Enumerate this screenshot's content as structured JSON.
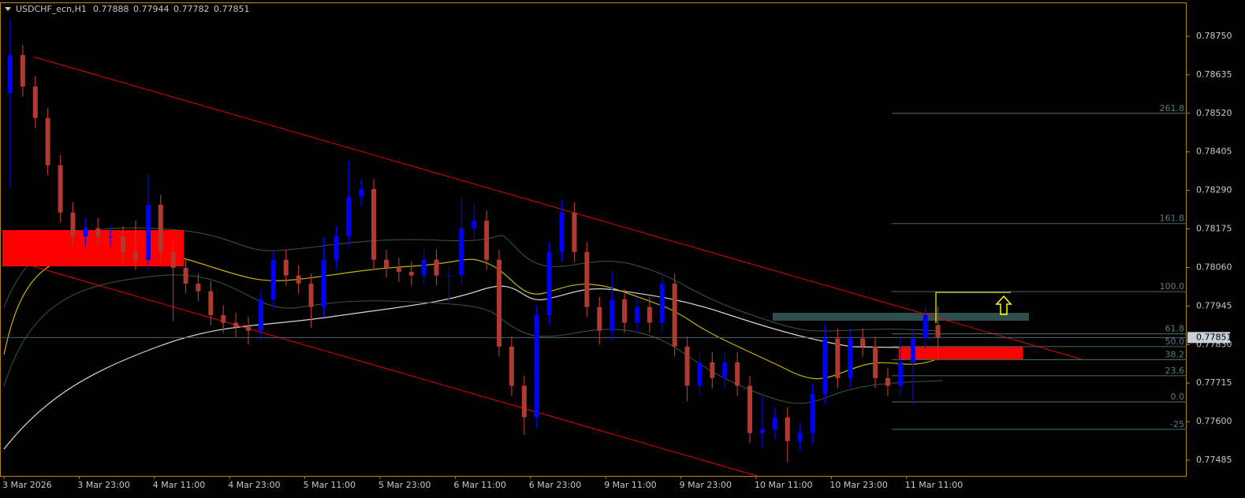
{
  "chart_data": {
    "type": "candlestick",
    "title": "USDCHF_ecn,H1",
    "categories": [
      "3 Mar 2026",
      null,
      null,
      null,
      null,
      null,
      "3 Mar 23:00",
      null,
      null,
      null,
      null,
      null,
      "4 Mar 11:00",
      null,
      null,
      null,
      null,
      null,
      "4 Mar 23:00",
      null,
      null,
      null,
      null,
      null,
      "5 Mar 11:00",
      null,
      null,
      null,
      null,
      null,
      "5 Mar 23:00",
      null,
      null,
      null,
      null,
      null,
      "6 Mar 11:00",
      null,
      null,
      null,
      null,
      null,
      "6 Mar 23:00",
      null,
      null,
      null,
      null,
      null,
      "9 Mar 11:00",
      null,
      null,
      null,
      null,
      null,
      "9 Mar 23:00",
      null,
      null,
      null,
      null,
      null,
      "10 Mar 11:00",
      null,
      null,
      null,
      null,
      null,
      "10 Mar 23:00",
      null,
      null,
      null,
      null,
      null,
      "11 Mar 11:00",
      null,
      null
    ],
    "open": [
      0.7858,
      0.78694,
      0.786,
      0.78506,
      0.78365,
      0.78224,
      0.78153,
      0.78177,
      0.78153,
      0.78153,
      0.78106,
      0.78083,
      0.78247,
      0.78106,
      0.78059,
      0.78012,
      0.77989,
      0.77918,
      0.77895,
      0.77883,
      0.77871,
      0.77965,
      0.78083,
      0.78036,
      0.78012,
      0.77942,
      0.78083,
      0.78153,
      0.78271,
      0.78294,
      0.78083,
      0.78059,
      0.78047,
      0.78036,
      0.78083,
      0.78036,
      0.78036,
      0.78177,
      0.782,
      0.78083,
      0.77824,
      0.77707,
      0.77613,
      0.77918,
      0.78106,
      0.78224,
      0.78106,
      0.77942,
      0.77871,
      0.77965,
      0.77895,
      0.77942,
      0.77895,
      0.78012,
      0.77824,
      0.77707,
      0.77777,
      0.7773,
      0.77777,
      0.77707,
      0.77566,
      0.77577,
      0.77613,
      0.77542,
      0.77566,
      0.77683,
      0.77848,
      0.7773,
      0.77848,
      0.77824,
      0.7773,
      0.77707,
      0.77777,
      0.77848,
      0.77888
    ],
    "high": [
      0.788,
      0.78724,
      0.7863,
      0.78536,
      0.78395,
      0.78254,
      0.78207,
      0.78207,
      0.78183,
      0.78183,
      0.782,
      0.7834,
      0.78277,
      0.78136,
      0.78089,
      0.78042,
      0.78019,
      0.77948,
      0.77925,
      0.77913,
      0.77995,
      0.78113,
      0.78113,
      0.78066,
      0.78042,
      0.7815,
      0.78183,
      0.7838,
      0.78324,
      0.78324,
      0.78113,
      0.78089,
      0.78077,
      0.78113,
      0.78113,
      0.78066,
      0.7827,
      0.7825,
      0.7823,
      0.78113,
      0.77854,
      0.77737,
      0.77948,
      0.78136,
      0.7826,
      0.78254,
      0.78136,
      0.77972,
      0.7805,
      0.77995,
      0.77972,
      0.77972,
      0.78042,
      0.78042,
      0.77854,
      0.77807,
      0.77807,
      0.77807,
      0.77807,
      0.77737,
      0.7768,
      0.77643,
      0.77643,
      0.77596,
      0.77713,
      0.7789,
      0.77878,
      0.77878,
      0.77878,
      0.77854,
      0.7776,
      0.7785,
      0.77878,
      0.77944,
      0.77944
    ],
    "low": [
      0.783,
      0.7857,
      0.78476,
      0.78335,
      0.78194,
      0.78123,
      0.78123,
      0.78123,
      0.78123,
      0.78076,
      0.78053,
      0.78053,
      0.78076,
      0.779,
      0.77982,
      0.77959,
      0.77888,
      0.77865,
      0.77853,
      0.7783,
      0.77841,
      0.77935,
      0.78006,
      0.77982,
      0.7788,
      0.77912,
      0.78053,
      0.78123,
      0.78241,
      0.78053,
      0.78029,
      0.78017,
      0.78006,
      0.78006,
      0.78006,
      0.7795,
      0.78006,
      0.78147,
      0.78053,
      0.77794,
      0.77677,
      0.7756,
      0.77583,
      0.77888,
      0.78076,
      0.78076,
      0.77912,
      0.7783,
      0.77841,
      0.77865,
      0.77865,
      0.77865,
      0.77865,
      0.77794,
      0.7766,
      0.77677,
      0.777,
      0.777,
      0.77677,
      0.77536,
      0.7752,
      0.77547,
      0.7748,
      0.77512,
      0.77536,
      0.77653,
      0.777,
      0.777,
      0.77794,
      0.777,
      0.77677,
      0.77677,
      0.7765,
      0.77818,
      0.77782
    ],
    "close": [
      0.78694,
      0.786,
      0.78506,
      0.78365,
      0.78224,
      0.78153,
      0.78177,
      0.78153,
      0.78153,
      0.78106,
      0.78083,
      0.78247,
      0.78106,
      0.78059,
      0.78012,
      0.77989,
      0.77918,
      0.77895,
      0.77883,
      0.77871,
      0.77965,
      0.78083,
      0.78036,
      0.78012,
      0.77942,
      0.78083,
      0.78153,
      0.78271,
      0.78294,
      0.78083,
      0.78059,
      0.78047,
      0.78036,
      0.78083,
      0.78036,
      0.78036,
      0.78177,
      0.782,
      0.78083,
      0.77824,
      0.77707,
      0.77613,
      0.77918,
      0.78106,
      0.78224,
      0.78106,
      0.77942,
      0.77871,
      0.77965,
      0.77895,
      0.77942,
      0.77895,
      0.78012,
      0.77824,
      0.77707,
      0.77777,
      0.7773,
      0.77777,
      0.77707,
      0.77566,
      0.77577,
      0.77613,
      0.77542,
      0.77566,
      0.77683,
      0.77848,
      0.7773,
      0.77848,
      0.77824,
      0.7773,
      0.77707,
      0.77777,
      0.77848,
      0.77918,
      0.77851
    ],
    "up_color": "#0000ff",
    "down_color": "#b03a2e",
    "ylim": [
      0.77438,
      0.78858
    ],
    "yticks": [
      {
        "value": 0.7875,
        "label": "0.78750"
      },
      0.78635,
      {
        "value": 0.7852,
        "label": "0.78520"
      },
      0.78405,
      {
        "value": 0.7829,
        "label": "0.78290"
      },
      0.78175,
      {
        "value": 0.7806,
        "label": "0.78060"
      },
      0.77945,
      {
        "value": 0.7783,
        "label": "0.77830"
      },
      0.77715,
      {
        "value": 0.776,
        "label": "0.77600"
      },
      0.77485
    ],
    "fib_levels": [
      {
        "value": 0.7852,
        "label": "261.8"
      },
      {
        "value": 0.78191,
        "label": "161.8"
      },
      {
        "value": 0.77988,
        "label": "100.0"
      },
      {
        "value": 0.77862,
        "label": "61.8"
      },
      {
        "value": 0.77824,
        "label": "50.0"
      },
      {
        "value": 0.77785,
        "label": "38.2"
      },
      {
        "value": 0.77737,
        "label": "23.6"
      },
      {
        "value": 0.77659,
        "label": "0.0"
      },
      {
        "value": 0.77577,
        "label": "-25"
      }
    ],
    "fib_color": "#3d5c5c"
  }
}
